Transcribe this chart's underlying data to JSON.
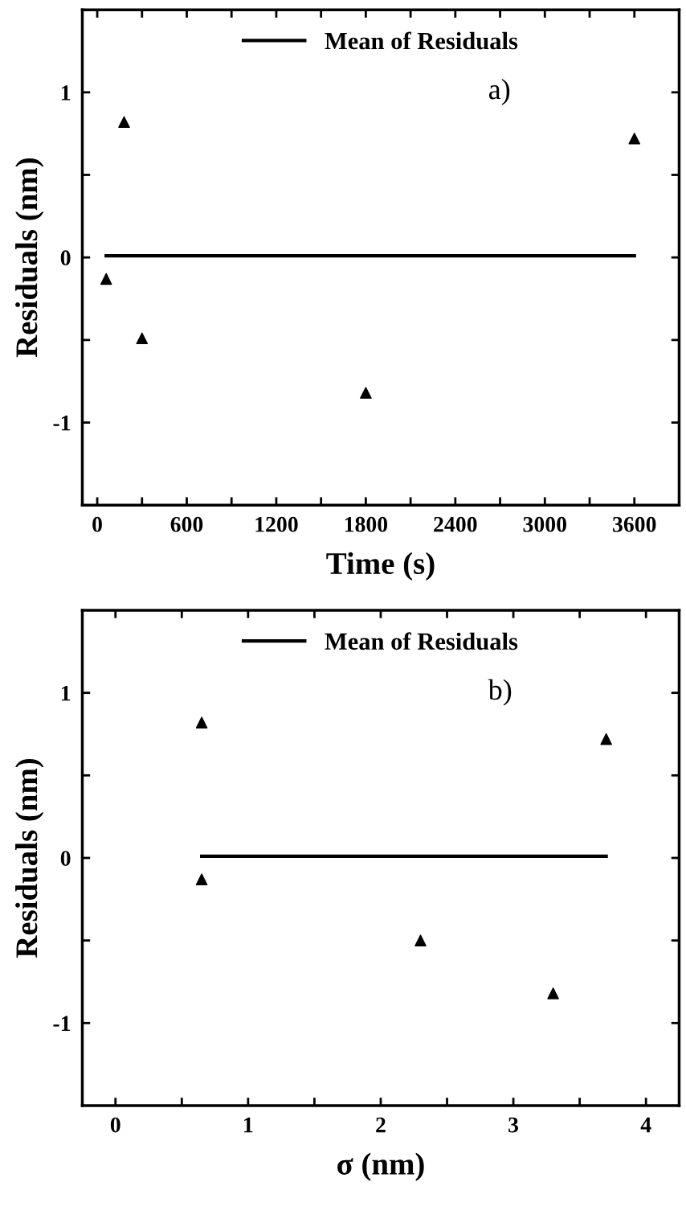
{
  "chart_data": [
    {
      "type": "scatter",
      "xlabel": "Time (s)",
      "ylabel": "Residuals (nm)",
      "annotations": [
        "a)"
      ],
      "legend": "top",
      "grid": false,
      "xlim": [
        -100,
        3900
      ],
      "ylim": [
        -1.5,
        1.5
      ],
      "xticks": [
        0,
        {
          "value": 300,
          "label": null
        },
        600,
        {
          "value": 900,
          "label": null
        },
        1200,
        {
          "value": 1500,
          "label": null
        },
        1800,
        {
          "value": 2100,
          "label": null
        },
        2400,
        {
          "value": 2700,
          "label": null
        },
        3000,
        {
          "value": 3300,
          "label": null
        },
        3600
      ],
      "yticks": [
        {
          "value": -1,
          "label": "-1"
        },
        {
          "value": -0.5,
          "label": null
        },
        0,
        {
          "value": 0.5,
          "label": null
        },
        1
      ],
      "series": [
        {
          "marker": "triangle",
          "color": "#000000",
          "x": [
            60,
            180,
            300,
            1800,
            3600
          ],
          "values": [
            -0.13,
            0.82,
            -0.49,
            -0.82,
            0.72
          ]
        },
        {
          "type": "line",
          "name": "Mean of Residuals",
          "line_style": "solid",
          "color": "#000000",
          "x": [
            60,
            3600
          ],
          "values": [
            0.01,
            0.01
          ]
        }
      ]
    },
    {
      "type": "scatter",
      "xlabel": "σ (nm)",
      "ylabel": "Residuals (nm)",
      "annotations": [
        "b)"
      ],
      "legend": "top",
      "grid": false,
      "xlim": [
        -0.25,
        4.25
      ],
      "ylim": [
        -1.5,
        1.5
      ],
      "xticks": [
        0,
        {
          "value": 0.5,
          "label": null
        },
        1,
        {
          "value": 1.5,
          "label": null
        },
        2,
        {
          "value": 2.5,
          "label": null
        },
        3,
        {
          "value": 3.5,
          "label": null
        },
        4
      ],
      "yticks": [
        {
          "value": -1,
          "label": "-1"
        },
        {
          "value": -0.5,
          "label": null
        },
        0,
        {
          "value": 0.5,
          "label": null
        },
        1
      ],
      "series": [
        {
          "marker": "triangle",
          "color": "#000000",
          "x": [
            0.65,
            0.65,
            2.3,
            3.3,
            3.7
          ],
          "values": [
            0.82,
            -0.13,
            -0.5,
            -0.82,
            0.72
          ]
        },
        {
          "type": "line",
          "name": "Mean of Residuals",
          "line_style": "solid",
          "color": "#000000",
          "x": [
            0.65,
            3.7
          ],
          "values": [
            0.01,
            0.01
          ]
        }
      ]
    }
  ]
}
